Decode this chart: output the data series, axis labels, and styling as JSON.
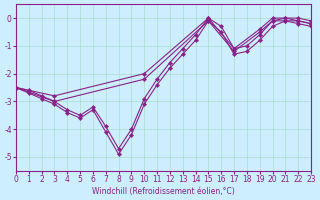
{
  "xlabel": "Windchill (Refroidissement éolien,°C)",
  "bg_color": "#cceeff",
  "line_color": "#882288",
  "grid_color": "#aaddcc",
  "xlim": [
    0,
    23
  ],
  "ylim": [
    -5.5,
    0.5
  ],
  "yticks": [
    0,
    -1,
    -2,
    -3,
    -4,
    -5
  ],
  "xticks": [
    0,
    1,
    2,
    3,
    4,
    5,
    6,
    7,
    8,
    9,
    10,
    11,
    12,
    13,
    14,
    15,
    16,
    17,
    18,
    19,
    20,
    21,
    22,
    23
  ],
  "series": [
    {
      "x": [
        0,
        1,
        2,
        3,
        4,
        5,
        6,
        7,
        8,
        9,
        10,
        11,
        12,
        13,
        14,
        15,
        16,
        17,
        18,
        19,
        20,
        21,
        22,
        23
      ],
      "y": [
        -2.5,
        -2.7,
        -2.9,
        -3.1,
        -3.4,
        -3.6,
        -3.3,
        -4.1,
        -4.9,
        -4.2,
        -3.1,
        -2.4,
        -1.8,
        -1.3,
        -0.8,
        -0.1,
        -0.5,
        -1.3,
        -1.2,
        -0.8,
        -0.3,
        -0.1,
        -0.2,
        -0.3
      ]
    },
    {
      "x": [
        0,
        1,
        2,
        3,
        4,
        5,
        6,
        7,
        8,
        9,
        10,
        11,
        12,
        13,
        14,
        15,
        16,
        17,
        18,
        19,
        20,
        21,
        22,
        23
      ],
      "y": [
        -2.5,
        -2.6,
        -2.8,
        -3.0,
        -3.3,
        -3.5,
        -3.2,
        -3.9,
        -4.7,
        -4.0,
        -2.9,
        -2.2,
        -1.6,
        -1.1,
        -0.6,
        0.0,
        -0.3,
        -1.1,
        -1.0,
        -0.6,
        -0.1,
        0.0,
        -0.1,
        -0.2
      ]
    },
    {
      "x": [
        0,
        3,
        10,
        15,
        17,
        19,
        20,
        21,
        22,
        23
      ],
      "y": [
        -2.5,
        -3.0,
        -2.2,
        -0.1,
        -1.2,
        -0.5,
        -0.1,
        -0.1,
        -0.1,
        -0.2
      ]
    },
    {
      "x": [
        0,
        3,
        10,
        15,
        17,
        19,
        20,
        21,
        22,
        23
      ],
      "y": [
        -2.5,
        -2.8,
        -2.0,
        0.0,
        -1.1,
        -0.4,
        0.0,
        0.0,
        0.0,
        -0.1
      ]
    }
  ]
}
